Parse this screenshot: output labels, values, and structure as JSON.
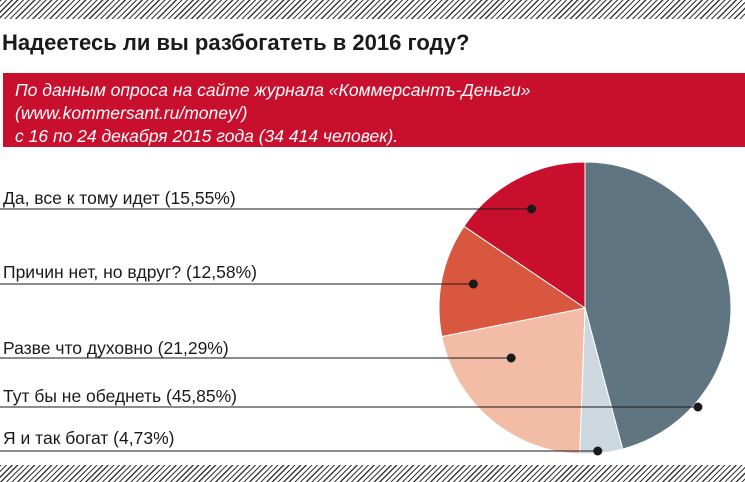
{
  "title": "Надеетесь ли вы разбогатеть в 2016 году?",
  "subtitle_lines": [
    "По данным опроса на сайте журнала «Коммерсантъ-Деньги»",
    "(www.kommersant.ru/money/)",
    "с 16 по 24 декабря 2015 года (34 414 человек)."
  ],
  "chart_data": {
    "type": "pie",
    "title": "Надеетесь ли вы разбогатеть в 2016 году?",
    "start_angle_deg": 0,
    "direction": "clockwise",
    "slices": [
      {
        "label": "Тут бы не обеднеть (45,85%)",
        "value": 45.85,
        "color": "#5f7581"
      },
      {
        "label": "Я и так богат (4,73%)",
        "value": 4.73,
        "color": "#cdd8de"
      },
      {
        "label": "Разве что духовно (21,29%)",
        "value": 21.29,
        "color": "#f2bca6"
      },
      {
        "label": "Причин нет, но вдруг? (12,58%)",
        "value": 12.58,
        "color": "#d9573e"
      },
      {
        "label": "Да, все к тому идет (15,55%)",
        "value": 15.55,
        "color": "#c8102e"
      }
    ],
    "legend_order": [
      "Да, все к тому идет (15,55%)",
      "Причин нет, но вдруг? (12,58%)",
      "Разве что духовно (21,29%)",
      "Тут бы не обеднеть (45,85%)",
      "Я и так богат (4,73%)"
    ]
  }
}
